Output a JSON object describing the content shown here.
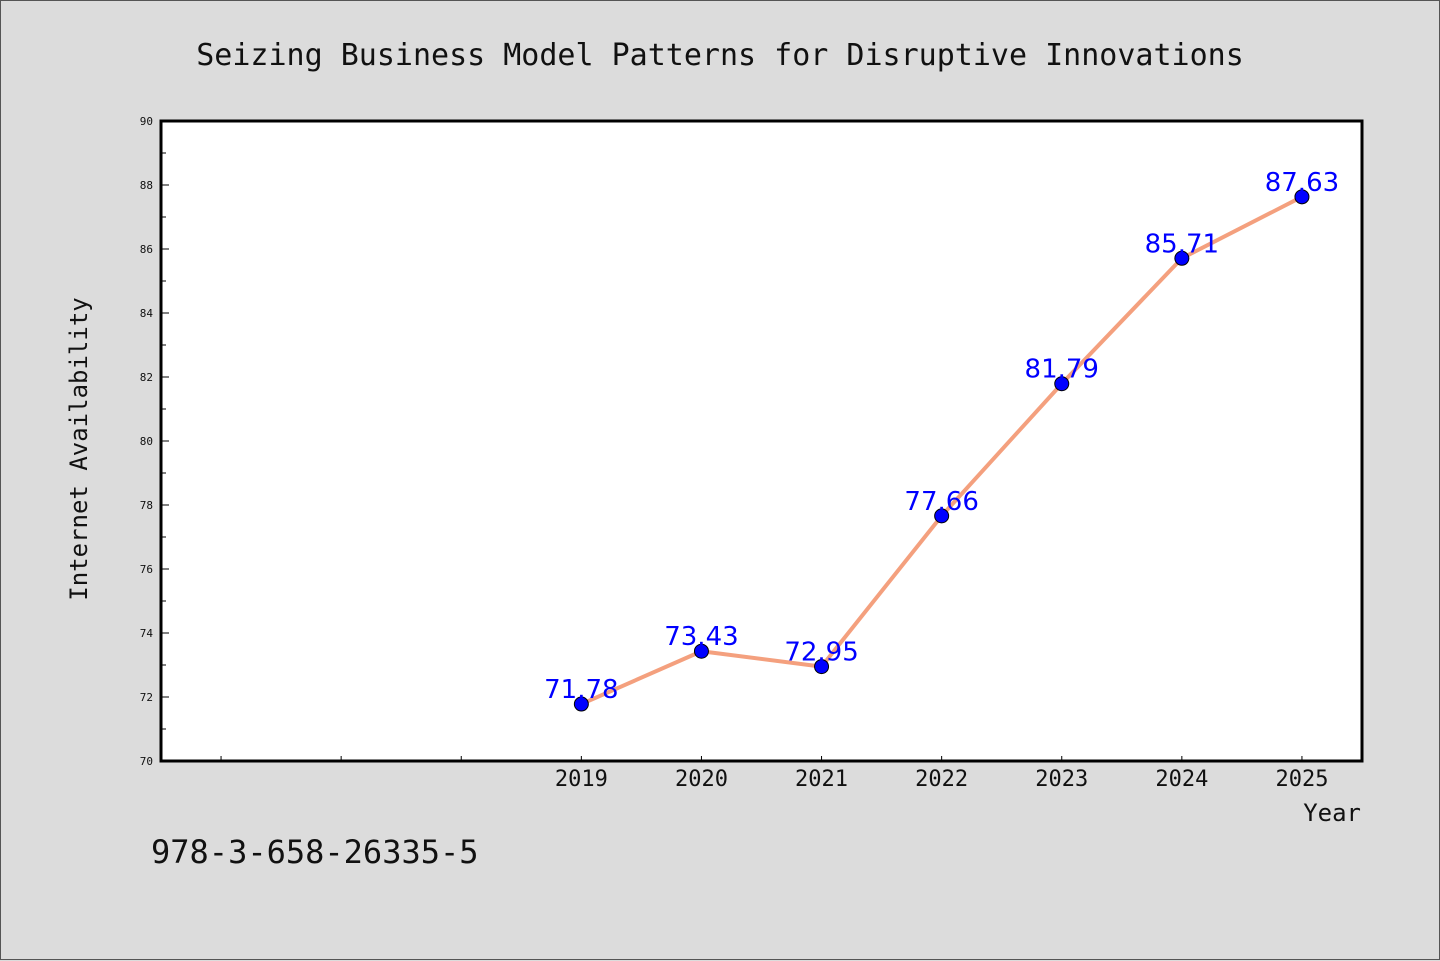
{
  "chart_data": {
    "type": "line",
    "title": "Seizing Business Model Patterns for Disruptive Innovations",
    "xlabel": "Year",
    "ylabel": "Internet Availability",
    "categories": [
      "2019",
      "2020",
      "2021",
      "2022",
      "2023",
      "2024",
      "2025"
    ],
    "x": [
      2019,
      2020,
      2021,
      2022,
      2023,
      2024,
      2025
    ],
    "xlim": [
      2015.5,
      2025.5
    ],
    "ylim": [
      70,
      90
    ],
    "yticks": [
      70,
      72,
      74,
      76,
      78,
      80,
      82,
      84,
      86,
      88,
      90
    ],
    "series": [
      {
        "values": [
          71.78,
          73.43,
          72.95,
          77.66,
          81.79,
          85.71,
          87.63
        ],
        "data_labels": [
          "71.78",
          "73.43",
          "72.95",
          "77.66",
          "81.79",
          "85.71",
          "87.63"
        ],
        "line_color": "#f4a07e",
        "marker_color": "#0000ff"
      }
    ],
    "grid": false,
    "legend": "none"
  },
  "footer": {
    "isbn": "978-3-658-26335-5"
  },
  "colors": {
    "background": "#dcdcdc",
    "plot_background": "#ffffff",
    "label_text": "#0000ff"
  }
}
